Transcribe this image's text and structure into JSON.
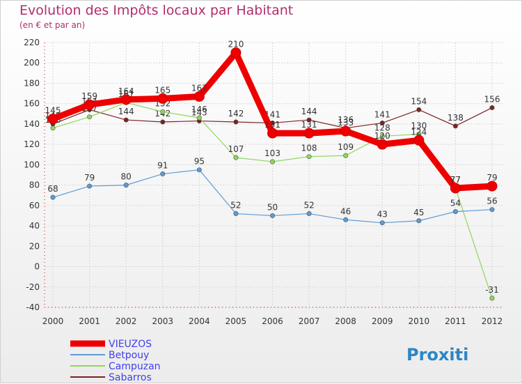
{
  "title": "Evolution des Impôts locaux par Habitant",
  "subtitle": "(en € et par an)",
  "brand": "Proxiti",
  "chart_data": {
    "type": "line",
    "title": "Evolution des Impôts locaux par Habitant",
    "ylabel": "(en € et par an)",
    "xlabel": "",
    "x": [
      "2000",
      "2001",
      "2002",
      "2003",
      "2004",
      "2005",
      "2006",
      "2007",
      "2008",
      "2009",
      "2010",
      "2011",
      "2012"
    ],
    "ylim": [
      -40,
      220
    ],
    "yticks": [
      -40,
      -20,
      0,
      20,
      40,
      60,
      80,
      100,
      120,
      140,
      160,
      180,
      200,
      220
    ],
    "grid": true,
    "series": [
      {
        "name": "Sabarros",
        "color": "#7b2323",
        "values": [
          140,
          154,
          144,
          142,
          143,
          142,
          141,
          144,
          136,
          141,
          154,
          138,
          156
        ]
      },
      {
        "name": "Campuzan",
        "color": "#8fd65b",
        "values": [
          136,
          147,
          161,
          152,
          146,
          107,
          103,
          108,
          109,
          128,
          130,
          77,
          -31
        ]
      },
      {
        "name": "Betpouy",
        "color": "#5b9bd5",
        "values": [
          68,
          79,
          80,
          91,
          95,
          52,
          50,
          52,
          46,
          43,
          45,
          54,
          56
        ]
      },
      {
        "name": "VIEUZOS",
        "color": "#ee0000",
        "values": [
          145,
          159,
          164,
          165,
          167,
          210,
          131,
          131,
          133,
          120,
          124,
          77,
          79
        ]
      }
    ]
  }
}
